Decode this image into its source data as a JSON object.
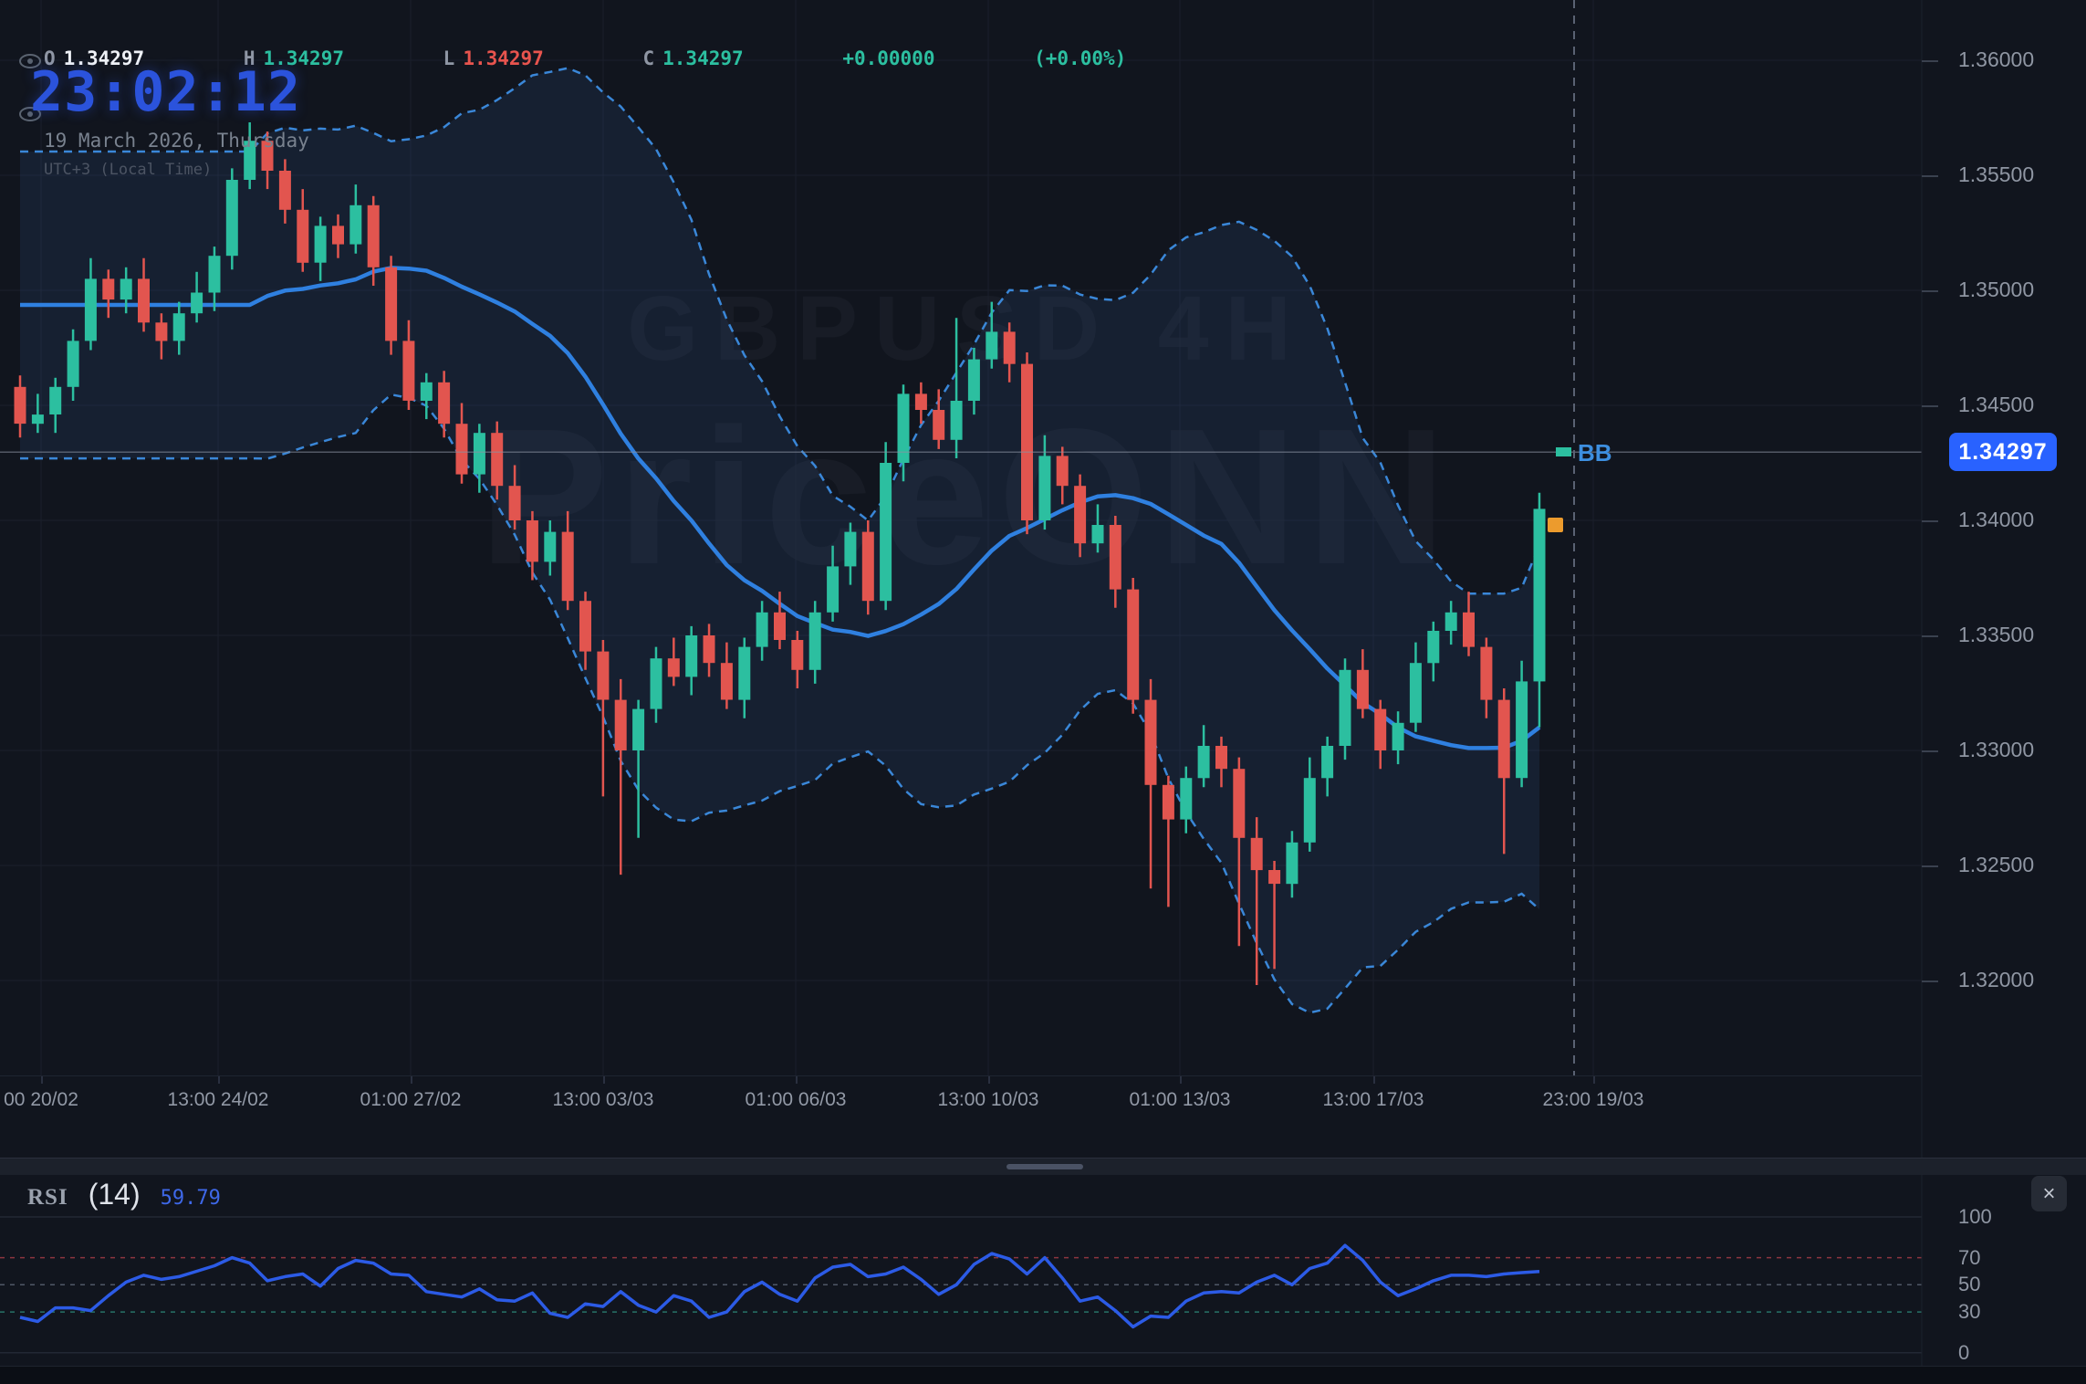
{
  "header": {
    "ohlc": {
      "o_label": "O",
      "o": "1.34297",
      "h_label": "H",
      "h": "1.34297",
      "l_label": "L",
      "l": "1.34297",
      "c_label": "C",
      "c": "1.34297",
      "change": "+0.00000",
      "change_pct": "(+0.00%)"
    },
    "clock": "23:02:12",
    "date": "19 March 2026, Thursday",
    "timezone": "UTC+3 (Local Time)"
  },
  "watermark": {
    "line1": "GBPUSD 4H",
    "line2": "PriceONN"
  },
  "price_axis": {
    "tick_labels": [
      "1.36000",
      "1.35500",
      "1.35000",
      "1.34500",
      "1.34000",
      "1.33500",
      "1.33000",
      "1.32500",
      "1.32000"
    ],
    "last_price": "1.34297"
  },
  "time_axis": {
    "tick_labels": [
      "00 20/02",
      "13:00 24/02",
      "01:00 27/02",
      "13:00 03/03",
      "01:00 06/03",
      "13:00 10/03",
      "01:00 13/03",
      "13:00 17/03",
      "23:00 19/03"
    ]
  },
  "overlay": {
    "bb_label": "BB"
  },
  "rsi_panel": {
    "title": "RSI",
    "period": "(14)",
    "value": "59.79",
    "tick_labels": [
      "100",
      "70",
      "50",
      "30",
      "0"
    ],
    "close_icon": "×"
  },
  "colors": {
    "background": "#11151e",
    "bull": "#2cbfa0",
    "bear": "#e2554f",
    "sma_line": "#2f80e0",
    "band_line": "#3a87d8",
    "band_fill": "rgba(64,110,180,0.13)",
    "rsi_line": "#2c5be6",
    "badge": "#2962ff",
    "grid": "#1b202c",
    "price_line": "#8a91a0",
    "overbought_line": "#a23b47",
    "midline": "#5a6374",
    "oversold_line": "#2b8374",
    "clock_blue": "#2b53dc",
    "marker_orange": "#ec9b2d"
  },
  "chart_data": {
    "type": "candlestick",
    "symbol": "GBPUSD",
    "timeframe": "4H",
    "title": "GBPUSD 4H",
    "ylim": [
      1.3159,
      1.3626
    ],
    "price_ticks": [
      1.36,
      1.355,
      1.35,
      1.345,
      1.34,
      1.335,
      1.33,
      1.325,
      1.32
    ],
    "current_price": 1.34297,
    "current_bar_open_marker": 1.3398,
    "indicators": [
      {
        "name": "Bollinger Bands",
        "period": 20,
        "mult": 2
      },
      {
        "name": "RSI",
        "period": 14,
        "last_value": 59.79
      }
    ],
    "candles": [
      [
        1.3458,
        1.3463,
        1.3436,
        1.3442
      ],
      [
        1.3442,
        1.3455,
        1.3438,
        1.3446
      ],
      [
        1.3446,
        1.3462,
        1.3438,
        1.3458
      ],
      [
        1.3458,
        1.3483,
        1.3452,
        1.3478
      ],
      [
        1.3478,
        1.3514,
        1.3474,
        1.3505
      ],
      [
        1.3505,
        1.3509,
        1.3488,
        1.3496
      ],
      [
        1.3496,
        1.351,
        1.349,
        1.3505
      ],
      [
        1.3505,
        1.3514,
        1.3482,
        1.3486
      ],
      [
        1.3486,
        1.349,
        1.347,
        1.3478
      ],
      [
        1.3478,
        1.3495,
        1.3472,
        1.349
      ],
      [
        1.349,
        1.3508,
        1.3486,
        1.3499
      ],
      [
        1.3499,
        1.3519,
        1.3491,
        1.3515
      ],
      [
        1.3515,
        1.3553,
        1.3509,
        1.3548
      ],
      [
        1.3548,
        1.3573,
        1.3544,
        1.3565
      ],
      [
        1.3565,
        1.3569,
        1.3544,
        1.3552
      ],
      [
        1.3552,
        1.3557,
        1.3529,
        1.3535
      ],
      [
        1.3535,
        1.3544,
        1.3508,
        1.3512
      ],
      [
        1.3512,
        1.3532,
        1.3504,
        1.3528
      ],
      [
        1.3528,
        1.3533,
        1.3514,
        1.352
      ],
      [
        1.352,
        1.3546,
        1.3516,
        1.3537
      ],
      [
        1.3537,
        1.3541,
        1.3502,
        1.351
      ],
      [
        1.351,
        1.3515,
        1.3472,
        1.3478
      ],
      [
        1.3478,
        1.3487,
        1.3448,
        1.3452
      ],
      [
        1.3452,
        1.3464,
        1.3444,
        1.346
      ],
      [
        1.346,
        1.3465,
        1.3436,
        1.3442
      ],
      [
        1.3442,
        1.3451,
        1.3416,
        1.342
      ],
      [
        1.342,
        1.3442,
        1.3412,
        1.3438
      ],
      [
        1.3438,
        1.3443,
        1.3409,
        1.3415
      ],
      [
        1.3415,
        1.3424,
        1.3396,
        1.34
      ],
      [
        1.34,
        1.3404,
        1.3374,
        1.3382
      ],
      [
        1.3382,
        1.34,
        1.3376,
        1.3395
      ],
      [
        1.3395,
        1.3404,
        1.3361,
        1.3365
      ],
      [
        1.3365,
        1.3369,
        1.3335,
        1.3343
      ],
      [
        1.3343,
        1.3348,
        1.328,
        1.3322
      ],
      [
        1.3322,
        1.3331,
        1.3246,
        1.33
      ],
      [
        1.33,
        1.3322,
        1.3262,
        1.3318
      ],
      [
        1.3318,
        1.3345,
        1.3312,
        1.334
      ],
      [
        1.334,
        1.3349,
        1.3328,
        1.3332
      ],
      [
        1.3332,
        1.3354,
        1.3324,
        1.335
      ],
      [
        1.335,
        1.3355,
        1.3332,
        1.3338
      ],
      [
        1.3338,
        1.3347,
        1.3318,
        1.3322
      ],
      [
        1.3322,
        1.3349,
        1.3314,
        1.3345
      ],
      [
        1.3345,
        1.3365,
        1.3339,
        1.336
      ],
      [
        1.336,
        1.3369,
        1.3344,
        1.3348
      ],
      [
        1.3348,
        1.3352,
        1.3327,
        1.3335
      ],
      [
        1.3335,
        1.3365,
        1.3329,
        1.336
      ],
      [
        1.336,
        1.3389,
        1.3356,
        1.338
      ],
      [
        1.338,
        1.3399,
        1.3372,
        1.3395
      ],
      [
        1.3395,
        1.34,
        1.3359,
        1.3365
      ],
      [
        1.3365,
        1.3434,
        1.3361,
        1.3425
      ],
      [
        1.3425,
        1.3459,
        1.3417,
        1.3455
      ],
      [
        1.3455,
        1.346,
        1.3442,
        1.3448
      ],
      [
        1.3448,
        1.3457,
        1.3431,
        1.3435
      ],
      [
        1.3435,
        1.3488,
        1.3427,
        1.3452
      ],
      [
        1.3452,
        1.3475,
        1.3446,
        1.347
      ],
      [
        1.347,
        1.3495,
        1.3466,
        1.3482
      ],
      [
        1.3482,
        1.3486,
        1.346,
        1.3468
      ],
      [
        1.3468,
        1.3473,
        1.3394,
        1.34
      ],
      [
        1.34,
        1.3437,
        1.3396,
        1.3428
      ],
      [
        1.3428,
        1.3432,
        1.3407,
        1.3415
      ],
      [
        1.3415,
        1.342,
        1.3384,
        1.339
      ],
      [
        1.339,
        1.3407,
        1.3386,
        1.3398
      ],
      [
        1.3398,
        1.3402,
        1.3362,
        1.337
      ],
      [
        1.337,
        1.3375,
        1.3316,
        1.3322
      ],
      [
        1.3322,
        1.3331,
        1.324,
        1.3285
      ],
      [
        1.3285,
        1.3289,
        1.3232,
        1.327
      ],
      [
        1.327,
        1.3293,
        1.3264,
        1.3288
      ],
      [
        1.3288,
        1.3311,
        1.3284,
        1.3302
      ],
      [
        1.3302,
        1.3306,
        1.3284,
        1.3292
      ],
      [
        1.3292,
        1.3297,
        1.3215,
        1.3262
      ],
      [
        1.3262,
        1.3271,
        1.3198,
        1.3248
      ],
      [
        1.3248,
        1.3252,
        1.3205,
        1.3242
      ],
      [
        1.3242,
        1.3265,
        1.3236,
        1.326
      ],
      [
        1.326,
        1.3297,
        1.3256,
        1.3288
      ],
      [
        1.3288,
        1.3306,
        1.328,
        1.3302
      ],
      [
        1.3302,
        1.334,
        1.3296,
        1.3335
      ],
      [
        1.3335,
        1.3344,
        1.3314,
        1.3318
      ],
      [
        1.3318,
        1.3322,
        1.3292,
        1.33
      ],
      [
        1.33,
        1.3317,
        1.3294,
        1.3312
      ],
      [
        1.3312,
        1.3347,
        1.3308,
        1.3338
      ],
      [
        1.3338,
        1.3356,
        1.333,
        1.3352
      ],
      [
        1.3352,
        1.3365,
        1.3346,
        1.336
      ],
      [
        1.336,
        1.3369,
        1.3341,
        1.3345
      ],
      [
        1.3345,
        1.3349,
        1.3314,
        1.3322
      ],
      [
        1.3322,
        1.3327,
        1.3255,
        1.3288
      ],
      [
        1.3288,
        1.3339,
        1.3284,
        1.333
      ],
      [
        1.333,
        1.3412,
        1.331,
        1.3405
      ]
    ],
    "rsi": {
      "period": 14,
      "range": [
        0,
        100
      ],
      "levels": [
        100,
        70,
        50,
        30,
        0
      ],
      "values": [
        26,
        23,
        33,
        33,
        31,
        42,
        52,
        57,
        54,
        56,
        60,
        64,
        70,
        66,
        53,
        56,
        58,
        49,
        62,
        68,
        66,
        58,
        57,
        45,
        43,
        41,
        47,
        39,
        38,
        44,
        29,
        26,
        36,
        34,
        45,
        35,
        30,
        42,
        38,
        26,
        30,
        45,
        52,
        43,
        38,
        55,
        63,
        65,
        56,
        58,
        63,
        54,
        43,
        50,
        65,
        73,
        69,
        58,
        70,
        55,
        38,
        41,
        31,
        19,
        27,
        26,
        38,
        44,
        45,
        44,
        52,
        57,
        50,
        62,
        66,
        79,
        68,
        52,
        42,
        47,
        53,
        57,
        57,
        56,
        58,
        59,
        59.79
      ]
    }
  }
}
